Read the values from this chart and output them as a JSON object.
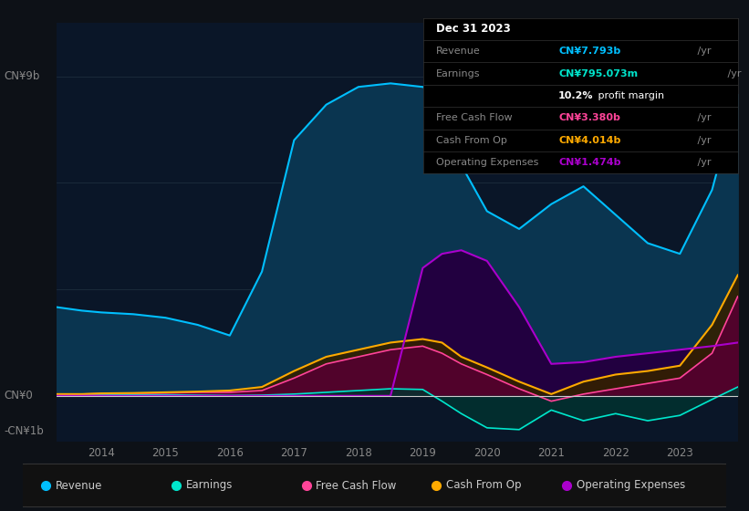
{
  "bg_color": "#0d1117",
  "plot_bg_color": "#0a1628",
  "ylabel_top": "CN¥9b",
  "ylabel_zero": "CN¥0",
  "ylabel_neg": "-CN¥1b",
  "ylim": [
    -1300000000.0,
    10500000000.0
  ],
  "years": [
    2013.3,
    2013.7,
    2014.0,
    2014.5,
    2015.0,
    2015.5,
    2016.0,
    2016.5,
    2017.0,
    2017.5,
    2018.0,
    2018.5,
    2019.0,
    2019.3,
    2019.6,
    2020.0,
    2020.5,
    2021.0,
    2021.5,
    2022.0,
    2022.5,
    2023.0,
    2023.5,
    2023.9
  ],
  "revenue": [
    2500000000.0,
    2400000000.0,
    2350000000.0,
    2300000000.0,
    2200000000.0,
    2000000000.0,
    1700000000.0,
    3500000000.0,
    7200000000.0,
    8200000000.0,
    8700000000.0,
    8800000000.0,
    8700000000.0,
    8500000000.0,
    6500000000.0,
    5200000000.0,
    4700000000.0,
    5400000000.0,
    5900000000.0,
    5100000000.0,
    4300000000.0,
    4000000000.0,
    5800000000.0,
    8500000000.0
  ],
  "earnings": [
    50000000.0,
    40000000.0,
    40000000.0,
    30000000.0,
    30000000.0,
    20000000.0,
    10000000.0,
    20000000.0,
    50000000.0,
    100000000.0,
    150000000.0,
    200000000.0,
    180000000.0,
    -150000000.0,
    -500000000.0,
    -900000000.0,
    -950000000.0,
    -400000000.0,
    -700000000.0,
    -500000000.0,
    -700000000.0,
    -550000000.0,
    -100000000.0,
    250000000.0
  ],
  "free_cash_flow": [
    50000000.0,
    50000000.0,
    60000000.0,
    70000000.0,
    80000000.0,
    100000000.0,
    100000000.0,
    150000000.0,
    500000000.0,
    900000000.0,
    1100000000.0,
    1300000000.0,
    1400000000.0,
    1200000000.0,
    900000000.0,
    600000000.0,
    200000000.0,
    -150000000.0,
    50000000.0,
    200000000.0,
    350000000.0,
    500000000.0,
    1200000000.0,
    2800000000.0
  ],
  "cash_from_op": [
    50000000.0,
    50000000.0,
    70000000.0,
    80000000.0,
    100000000.0,
    120000000.0,
    150000000.0,
    250000000.0,
    700000000.0,
    1100000000.0,
    1300000000.0,
    1500000000.0,
    1600000000.0,
    1500000000.0,
    1100000000.0,
    800000000.0,
    400000000.0,
    50000000.0,
    400000000.0,
    600000000.0,
    700000000.0,
    850000000.0,
    2000000000.0,
    3400000000.0
  ],
  "operating_expenses": [
    0.0,
    0.0,
    0.0,
    0.0,
    0.0,
    0.0,
    0.0,
    0.0,
    0.0,
    0.0,
    0.0,
    0.0,
    3600000000.0,
    4000000000.0,
    4100000000.0,
    3800000000.0,
    2500000000.0,
    900000000.0,
    950000000.0,
    1100000000.0,
    1200000000.0,
    1300000000.0,
    1400000000.0,
    1500000000.0
  ],
  "revenue_color": "#00bfff",
  "earnings_color": "#00e5cc",
  "fcf_color": "#ff4499",
  "cashop_color": "#ffaa00",
  "opex_color": "#aa00cc",
  "revenue_fill": "#0a3550",
  "earnings_fill": "#003330",
  "fcf_fill": "#550030",
  "cashop_fill": "#332000",
  "opex_fill": "#220040",
  "info_box": {
    "date": "Dec 31 2023",
    "revenue_label": "Revenue",
    "revenue_value": "CN¥7.793b",
    "earnings_label": "Earnings",
    "earnings_value": "CN¥795.073m",
    "margin_pct": "10.2%",
    "margin_rest": " profit margin",
    "fcf_label": "Free Cash Flow",
    "fcf_value": "CN¥3.380b",
    "cashop_label": "Cash From Op",
    "cashop_value": "CN¥4.014b",
    "opex_label": "Operating Expenses",
    "opex_value": "CN¥1.474b"
  },
  "legend": [
    {
      "label": "Revenue",
      "color": "#00bfff"
    },
    {
      "label": "Earnings",
      "color": "#00e5cc"
    },
    {
      "label": "Free Cash Flow",
      "color": "#ff4499"
    },
    {
      "label": "Cash From Op",
      "color": "#ffaa00"
    },
    {
      "label": "Operating Expenses",
      "color": "#aa00cc"
    }
  ],
  "xticks": [
    2014,
    2015,
    2016,
    2017,
    2018,
    2019,
    2020,
    2021,
    2022,
    2023
  ],
  "grid_color": "#1e2d3d",
  "zero_line_color": "#cccccc"
}
